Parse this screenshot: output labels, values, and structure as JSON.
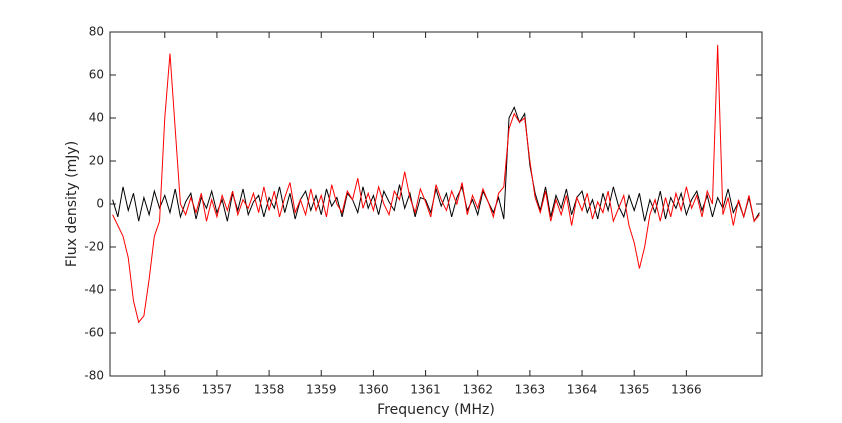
{
  "chart_data": {
    "type": "line",
    "x_label": "Frequency (MHz)",
    "y_label": "Flux density (mJy)",
    "xlim": [
      1354.95,
      1367.45
    ],
    "ylim": [
      -80,
      80
    ],
    "xticks": [
      1356,
      1357,
      1358,
      1359,
      1360,
      1361,
      1362,
      1363,
      1364,
      1365,
      1366
    ],
    "yticks": [
      -80,
      -60,
      -40,
      -20,
      0,
      20,
      40,
      60,
      80
    ],
    "grid": false,
    "x": [
      1355.0,
      1355.1,
      1355.2,
      1355.3,
      1355.4,
      1355.5,
      1355.6,
      1355.7,
      1355.8,
      1355.9,
      1356.0,
      1356.1,
      1356.2,
      1356.3,
      1356.4,
      1356.5,
      1356.6,
      1356.7,
      1356.8,
      1356.9,
      1357.0,
      1357.1,
      1357.2,
      1357.3,
      1357.4,
      1357.5,
      1357.6,
      1357.7,
      1357.8,
      1357.9,
      1358.0,
      1358.1,
      1358.2,
      1358.3,
      1358.4,
      1358.5,
      1358.6,
      1358.7,
      1358.8,
      1358.9,
      1359.0,
      1359.1,
      1359.2,
      1359.3,
      1359.4,
      1359.5,
      1359.6,
      1359.7,
      1359.8,
      1359.9,
      1360.0,
      1360.1,
      1360.2,
      1360.3,
      1360.4,
      1360.5,
      1360.6,
      1360.7,
      1360.8,
      1360.9,
      1361.0,
      1361.1,
      1361.2,
      1361.3,
      1361.4,
      1361.5,
      1361.6,
      1361.7,
      1361.8,
      1361.9,
      1362.0,
      1362.1,
      1362.2,
      1362.3,
      1362.4,
      1362.5,
      1362.6,
      1362.7,
      1362.8,
      1362.9,
      1363.0,
      1363.1,
      1363.2,
      1363.3,
      1363.4,
      1363.5,
      1363.6,
      1363.7,
      1363.8,
      1363.9,
      1364.0,
      1364.1,
      1364.2,
      1364.3,
      1364.4,
      1364.5,
      1364.6,
      1364.7,
      1364.8,
      1364.9,
      1365.0,
      1365.1,
      1365.2,
      1365.3,
      1365.4,
      1365.5,
      1365.6,
      1365.7,
      1365.8,
      1365.9,
      1366.0,
      1366.1,
      1366.2,
      1366.3,
      1366.4,
      1366.5,
      1366.6,
      1366.7,
      1366.8,
      1366.9,
      1367.0,
      1367.1,
      1367.2,
      1367.3,
      1367.4
    ],
    "series": [
      {
        "color": "#000000",
        "values": [
          2,
          -6,
          8,
          -3,
          5,
          -8,
          3,
          -5,
          6,
          -2,
          4,
          -4,
          7,
          -6,
          1,
          5,
          -7,
          3,
          -2,
          6,
          -4,
          2,
          -8,
          5,
          -3,
          7,
          -5,
          1,
          4,
          -6,
          3,
          -2,
          8,
          -4,
          5,
          -7,
          2,
          6,
          -3,
          4,
          -5,
          7,
          -1,
          3,
          -6,
          5,
          2,
          -4,
          8,
          -2,
          4,
          -5,
          6,
          1,
          -3,
          9,
          -2,
          5,
          -6,
          3,
          2,
          -4,
          7,
          -1,
          5,
          -6,
          3,
          8,
          -3,
          2,
          -5,
          6,
          1,
          -4,
          3,
          -7,
          40,
          45,
          38,
          42,
          18,
          5,
          -3,
          8,
          -6,
          4,
          -2,
          7,
          -5,
          3,
          6,
          -4,
          2,
          -7,
          5,
          -3,
          8,
          -1,
          -6,
          4,
          -3,
          5,
          -8,
          2,
          -4,
          6,
          -7,
          3,
          -2,
          5,
          -5,
          2,
          6,
          -3,
          4,
          -6,
          3,
          -2,
          7,
          -4,
          1,
          -6,
          3,
          -8,
          -4
        ]
      },
      {
        "color": "#ff0000",
        "values": [
          -5,
          -10,
          -15,
          -25,
          -45,
          -55,
          -52,
          -35,
          -15,
          -8,
          40,
          70,
          35,
          0,
          -5,
          3,
          -4,
          5,
          -8,
          2,
          -6,
          4,
          -3,
          6,
          -5,
          2,
          -2,
          5,
          -4,
          8,
          -3,
          6,
          -6,
          3,
          10,
          -4,
          2,
          -5,
          7,
          -3,
          4,
          -6,
          9,
          0,
          -4,
          6,
          2,
          12,
          -2,
          5,
          -3,
          8,
          0,
          -5,
          6,
          2,
          15,
          3,
          -4,
          7,
          1,
          -6,
          9,
          2,
          -3,
          6,
          0,
          10,
          -5,
          4,
          -2,
          7,
          1,
          -6,
          5,
          8,
          35,
          42,
          38,
          40,
          20,
          3,
          -4,
          6,
          -8,
          2,
          -5,
          4,
          -10,
          3,
          -3,
          5,
          -7,
          1,
          -4,
          6,
          -8,
          -2,
          4,
          -10,
          -18,
          -30,
          -20,
          -5,
          2,
          -8,
          3,
          -6,
          5,
          -3,
          8,
          -2,
          4,
          -6,
          6,
          0,
          74,
          -5,
          3,
          -10,
          2,
          -6,
          4,
          -8,
          -5
        ]
      }
    ]
  }
}
